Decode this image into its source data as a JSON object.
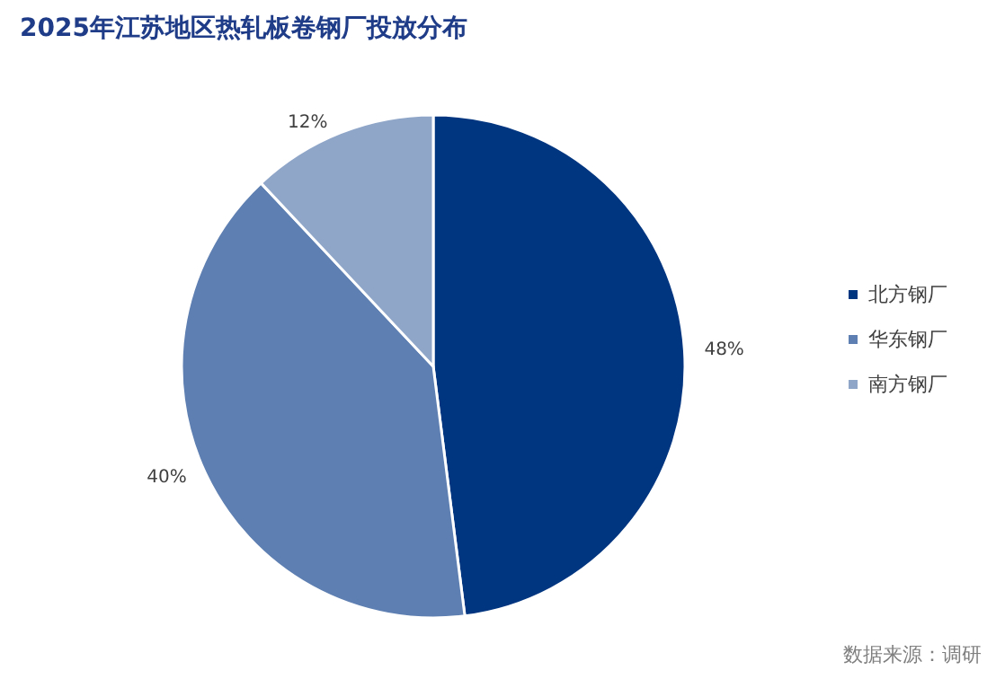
{
  "chart_data": {
    "type": "pie",
    "title": "2025年江苏地区热轧板卷钢厂投放分布",
    "categories": [
      "北方钢厂",
      "华东钢厂",
      "南方钢厂"
    ],
    "values": [
      48,
      40,
      12
    ],
    "value_labels": [
      "48%",
      "40%",
      "12%"
    ],
    "colors": [
      "#003580",
      "#5e7fb1",
      "#8fa6c9"
    ],
    "legend": "right",
    "annotations": [
      "数据来源：调研"
    ]
  }
}
